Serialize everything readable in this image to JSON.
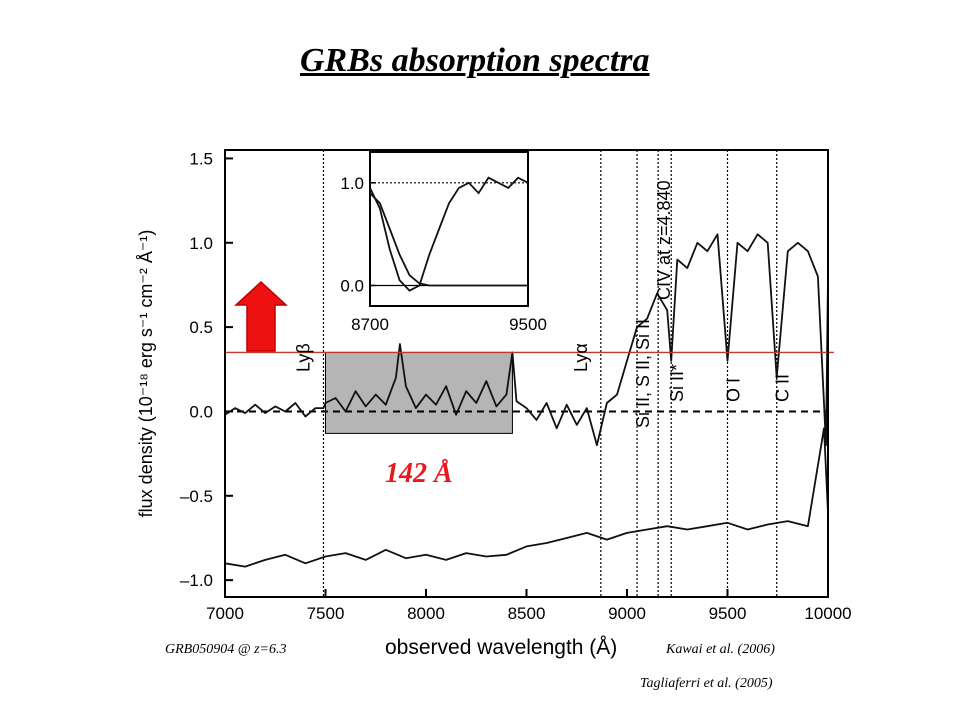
{
  "title": "GRBs absorption spectra",
  "annotation": "142 Å",
  "citations": {
    "object": "GRB050904 @ z=6.3",
    "kawai": "Kawai et al. (2006)",
    "tagliaferri": "Tagliaferri et al. (2005)"
  },
  "colors": {
    "highlight_line": "#c0392b",
    "arrow": "#ee1111",
    "annotation": "#e8191e",
    "shade": "#b5b5b5"
  },
  "chart_data": {
    "type": "line",
    "xlabel": "observed wavelength (Å)",
    "ylabel": "flux density (10⁻¹⁸ erg s⁻¹ cm⁻² Å⁻¹)",
    "xlim": [
      7000,
      10000
    ],
    "ylim": [
      -1.1,
      1.55
    ],
    "x_ticks": [
      "7000",
      "7500",
      "8000",
      "8500",
      "9000",
      "9500",
      "10000"
    ],
    "y_ticks": [
      "1.5",
      "1.0",
      "0.5",
      "0.0",
      "–0.5",
      "–1.0"
    ],
    "threshold_line_y": 0.35,
    "shaded_region": {
      "x": [
        7500,
        8430
      ],
      "y": [
        -0.13,
        0.35
      ]
    },
    "absorption_lines": [
      {
        "label": "Lyβ",
        "x": 7490
      },
      {
        "label": "Lyα",
        "x": 8870
      },
      {
        "label": "Si II, S II, Si II",
        "x": 9050
      },
      {
        "label": "CIV at z=4.840",
        "x": 9155
      },
      {
        "label": "Si II*",
        "x": 9220
      },
      {
        "label": "O I",
        "x": 9500
      },
      {
        "label": "C II",
        "x": 9745
      }
    ],
    "series": [
      {
        "x": [
          7000,
          7050,
          7100,
          7150,
          7200,
          7250,
          7300,
          7350,
          7400,
          7450,
          7490,
          7500,
          7550,
          7600,
          7650,
          7700,
          7750,
          7800,
          7850,
          7870,
          7900,
          7950,
          8000,
          8050,
          8100,
          8150,
          8200,
          8250,
          8300,
          8350,
          8400,
          8430,
          8450,
          8500,
          8550,
          8600,
          8650,
          8700,
          8750,
          8800,
          8850,
          8870,
          8900,
          8950,
          9000,
          9050,
          9100,
          9150,
          9200,
          9220,
          9250,
          9300,
          9350,
          9400,
          9450,
          9500,
          9550,
          9600,
          9650,
          9700,
          9745,
          9800,
          9850,
          9900,
          9950,
          9990,
          10000
        ],
        "values": [
          -0.02,
          0.02,
          -0.01,
          0.04,
          -0.01,
          0.03,
          0.0,
          0.05,
          -0.03,
          0.02,
          0.02,
          0.05,
          0.08,
          0.0,
          0.12,
          0.03,
          0.1,
          0.04,
          0.2,
          0.4,
          0.15,
          0.02,
          0.1,
          0.04,
          0.15,
          -0.02,
          0.12,
          0.05,
          0.18,
          0.03,
          0.1,
          0.35,
          0.06,
          0.02,
          -0.05,
          0.05,
          -0.1,
          0.04,
          -0.08,
          0.02,
          -0.2,
          -0.1,
          0.05,
          0.1,
          0.3,
          0.5,
          0.55,
          0.7,
          0.6,
          0.3,
          0.9,
          0.85,
          1.0,
          0.95,
          1.05,
          0.3,
          1.0,
          0.95,
          1.05,
          1.0,
          0.2,
          0.95,
          1.0,
          0.95,
          0.8,
          -0.2,
          0.8
        ]
      },
      {
        "x": [
          7000,
          7100,
          7200,
          7300,
          7400,
          7500,
          7600,
          7700,
          7800,
          7900,
          8000,
          8100,
          8200,
          8300,
          8400,
          8500,
          8600,
          8700,
          8800,
          8900,
          9000,
          9100,
          9200,
          9300,
          9400,
          9500,
          9600,
          9700,
          9800,
          9900,
          9980,
          10000
        ],
        "values": [
          -0.9,
          -0.92,
          -0.88,
          -0.85,
          -0.9,
          -0.86,
          -0.84,
          -0.88,
          -0.82,
          -0.87,
          -0.85,
          -0.88,
          -0.84,
          -0.86,
          -0.85,
          -0.8,
          -0.78,
          -0.75,
          -0.72,
          -0.76,
          -0.72,
          -0.7,
          -0.68,
          -0.7,
          -0.68,
          -0.66,
          -0.7,
          -0.67,
          -0.65,
          -0.68,
          -0.1,
          -0.6
        ]
      },
      {
        "x": [
          8700,
          8750,
          8800,
          8850,
          8900,
          8950,
          9000,
          9050,
          9100,
          9150,
          9200,
          9250,
          9300,
          9350,
          9400,
          9450,
          9500
        ],
        "values": [
          0.95,
          0.75,
          0.35,
          0.05,
          -0.05,
          0.0,
          0.3,
          0.55,
          0.8,
          0.95,
          1.0,
          0.9,
          1.05,
          1.0,
          0.95,
          1.05,
          1.0
        ]
      },
      {
        "x": [
          8700,
          8750,
          8800,
          8850,
          8900,
          8950,
          9000,
          9100,
          9200,
          9300,
          9400,
          9500
        ],
        "values": [
          0.9,
          0.8,
          0.55,
          0.3,
          0.1,
          0.02,
          0.0,
          0.0,
          0.0,
          0.0,
          0.0,
          0.0
        ]
      }
    ],
    "inset": {
      "xlim": [
        8700,
        9500
      ],
      "ylim": [
        -0.2,
        1.3
      ],
      "x_ticks": [
        "8700",
        "9500"
      ],
      "y_ticks": [
        "1.0",
        "0.0"
      ]
    }
  }
}
